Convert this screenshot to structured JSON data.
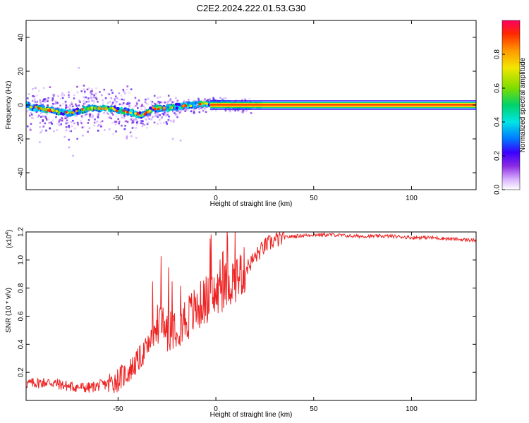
{
  "figure": {
    "title": "C2E2.2024.222.01.53.G30"
  },
  "chart_data": [
    {
      "type": "heatmap",
      "xlabel": "Height of straight line (km)",
      "ylabel": "Frequency (Hz)",
      "xlim": [
        -97,
        133
      ],
      "ylim": [
        -50,
        50
      ],
      "xticks": [
        -50,
        0,
        50,
        100
      ],
      "yticks": [
        -40,
        -20,
        0,
        20,
        40
      ],
      "colorbar": {
        "label": "Normalized spectral amplitude",
        "range": [
          0,
          1
        ],
        "ticks": [
          "0.0",
          "0.2",
          "0.4",
          "0.6",
          "0.8"
        ],
        "tick_values": [
          0.0,
          0.2,
          0.4,
          0.6,
          0.8
        ],
        "colormap": [
          "#ffffff",
          "#d9b3ff",
          "#8a2be2",
          "#3a00ff",
          "#0078ff",
          "#00e5e5",
          "#00d26a",
          "#7ddc00",
          "#f2e600",
          "#ff9a00",
          "#ff2a00",
          "#ff0060"
        ]
      },
      "ridge": {
        "description_points_x": [
          -95,
          -85,
          -75,
          -65,
          -55,
          -45,
          -38,
          -32,
          -25,
          -20,
          -12,
          -5,
          0,
          5,
          10,
          15,
          20,
          133
        ],
        "frequency_y": [
          -1,
          -3,
          -5,
          -2,
          -2,
          -4,
          -6,
          -2,
          -2,
          -1,
          0,
          1,
          1,
          1,
          0,
          0,
          0,
          0
        ]
      }
    },
    {
      "type": "line",
      "xlabel": "Height of straight line (km)",
      "ylabel": "SNR (10 * v/v)",
      "yscale_label": "(x10",
      "yscale_exp": "4",
      "xlim": [
        -97,
        133
      ],
      "ylim": [
        0,
        1.2
      ],
      "xticks": [
        -50,
        0,
        50,
        100
      ],
      "yticks": [
        "0.2",
        "0.4",
        "0.6",
        "0.8",
        "1.0",
        "1.2"
      ],
      "ytick_values": [
        0.2,
        0.4,
        0.6,
        0.8,
        1.0,
        1.2
      ],
      "line_color": "#ee2222",
      "series": [
        {
          "x": [
            -97,
            -85,
            -75,
            -65,
            -55,
            -50,
            -45,
            -40,
            -35,
            -30,
            -28,
            -25,
            -20,
            -15,
            -10,
            -5,
            0,
            5,
            10,
            15,
            20,
            25,
            30,
            35,
            40,
            50,
            60,
            70,
            80,
            90,
            100,
            110,
            120,
            133
          ],
          "values": [
            0.12,
            0.13,
            0.1,
            0.09,
            0.12,
            0.15,
            0.2,
            0.28,
            0.38,
            0.5,
            0.58,
            0.52,
            0.55,
            0.58,
            0.65,
            0.72,
            0.75,
            0.82,
            0.87,
            0.93,
            1.02,
            1.1,
            1.14,
            1.16,
            1.17,
            1.18,
            1.18,
            1.17,
            1.17,
            1.17,
            1.16,
            1.16,
            1.15,
            1.14
          ]
        }
      ]
    }
  ]
}
